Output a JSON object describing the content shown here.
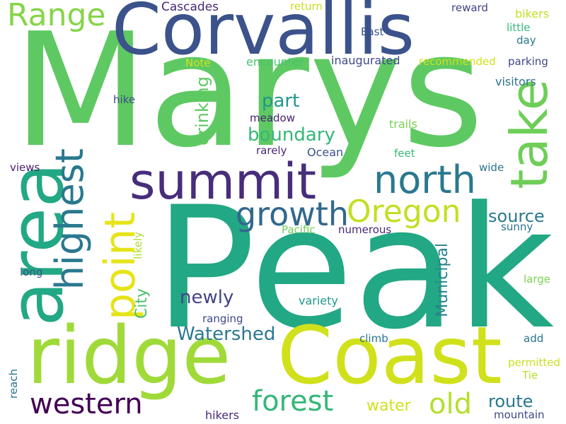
{
  "words": [
    {
      "key": "peak",
      "text": "Peak",
      "color": "#22a884"
    },
    {
      "key": "marys",
      "text": "Marys",
      "color": "#5ec962"
    },
    {
      "key": "corvallis",
      "text": "Corvallis",
      "color": "#3b528b"
    },
    {
      "key": "ridge",
      "text": "ridge",
      "color": "#a0da39"
    },
    {
      "key": "coast",
      "text": "Coast",
      "color": "#d0e11c"
    },
    {
      "key": "area",
      "text": "area",
      "color": "#22a884"
    },
    {
      "key": "summit",
      "text": "summit",
      "color": "#472d7b"
    },
    {
      "key": "take",
      "text": "take",
      "color": "#6ece58"
    },
    {
      "key": "north",
      "text": "north",
      "color": "#2a788e"
    },
    {
      "key": "highest",
      "text": "highest",
      "color": "#2a788e"
    },
    {
      "key": "point",
      "text": "point",
      "color": "#e6e419"
    },
    {
      "key": "oregon",
      "text": "Oregon",
      "color": "#c2df23"
    },
    {
      "key": "growth",
      "text": "growth",
      "color": "#31688e"
    },
    {
      "key": "range",
      "text": "Range",
      "color": "#86d549"
    },
    {
      "key": "western",
      "text": "western",
      "color": "#440154"
    },
    {
      "key": "forest",
      "text": "forest",
      "color": "#35b779"
    },
    {
      "key": "old",
      "text": "old",
      "color": "#b5de2b"
    },
    {
      "key": "watershed",
      "text": "Watershed",
      "color": "#2a788e"
    },
    {
      "key": "boundary",
      "text": "boundary",
      "color": "#35b779"
    },
    {
      "key": "newly",
      "text": "newly",
      "color": "#414487"
    },
    {
      "key": "part",
      "text": "part",
      "color": "#1f988b"
    },
    {
      "key": "source",
      "text": "source",
      "color": "#2a788e"
    },
    {
      "key": "drinking",
      "text": "drinking",
      "color": "#5ec962"
    },
    {
      "key": "municipal",
      "text": "Municipal",
      "color": "#26828e"
    },
    {
      "key": "city",
      "text": "City",
      "color": "#4ac16d"
    },
    {
      "key": "route",
      "text": "route",
      "color": "#2a788e"
    },
    {
      "key": "water",
      "text": "water",
      "color": "#d0e11c"
    },
    {
      "key": "cascades",
      "text": "Cascades",
      "color": "#482878"
    },
    {
      "key": "return",
      "text": "return",
      "color": "#c8e020"
    },
    {
      "key": "reward",
      "text": "reward",
      "color": "#414487"
    },
    {
      "key": "bikers",
      "text": "bikers",
      "color": "#c2df23"
    },
    {
      "key": "east",
      "text": "East",
      "color": "#3b528b"
    },
    {
      "key": "little",
      "text": "little",
      "color": "#38b977"
    },
    {
      "key": "day",
      "text": "day",
      "color": "#2a788e"
    },
    {
      "key": "note",
      "text": "Note",
      "color": "#d0e11c"
    },
    {
      "key": "encounter",
      "text": "encounter",
      "color": "#4ac16d"
    },
    {
      "key": "inaugurated",
      "text": "inaugurated",
      "color": "#3e4989"
    },
    {
      "key": "recommended",
      "text": "recommended",
      "color": "#d0e11c"
    },
    {
      "key": "parking",
      "text": "parking",
      "color": "#3e4989"
    },
    {
      "key": "visitors",
      "text": "visitors",
      "color": "#2c728e"
    },
    {
      "key": "hike",
      "text": "hike",
      "color": "#3e4989"
    },
    {
      "key": "meadow",
      "text": "meadow",
      "color": "#481f70"
    },
    {
      "key": "trails",
      "text": "trails",
      "color": "#7ad151"
    },
    {
      "key": "rarely",
      "text": "rarely",
      "color": "#482878"
    },
    {
      "key": "ocean",
      "text": "Ocean",
      "color": "#3b528b"
    },
    {
      "key": "feet",
      "text": "feet",
      "color": "#38b977"
    },
    {
      "key": "views",
      "text": "views",
      "color": "#481f70"
    },
    {
      "key": "wide",
      "text": "wide",
      "color": "#2c728e"
    },
    {
      "key": "pacific",
      "text": "Pacific",
      "color": "#6ece58"
    },
    {
      "key": "numerous",
      "text": "numerous",
      "color": "#482878"
    },
    {
      "key": "sunny",
      "text": "sunny",
      "color": "#2c728e"
    },
    {
      "key": "likely",
      "text": "likely",
      "color": "#addc30"
    },
    {
      "key": "long",
      "text": "long",
      "color": "#3b528b"
    },
    {
      "key": "large",
      "text": "large",
      "color": "#7ad151"
    },
    {
      "key": "variety",
      "text": "variety",
      "color": "#1f988b"
    },
    {
      "key": "ranging",
      "text": "ranging",
      "color": "#3e4989"
    },
    {
      "key": "climb",
      "text": "climb",
      "color": "#2c728e"
    },
    {
      "key": "add",
      "text": "add",
      "color": "#2c728e"
    },
    {
      "key": "permitted",
      "text": "permitted",
      "color": "#c8e020"
    },
    {
      "key": "tie",
      "text": "Tie",
      "color": "#b5de2b"
    },
    {
      "key": "reach",
      "text": "reach",
      "color": "#2c728e"
    },
    {
      "key": "hikers",
      "text": "hikers",
      "color": "#482878"
    },
    {
      "key": "mountain",
      "text": "mountain",
      "color": "#3e4989"
    }
  ]
}
